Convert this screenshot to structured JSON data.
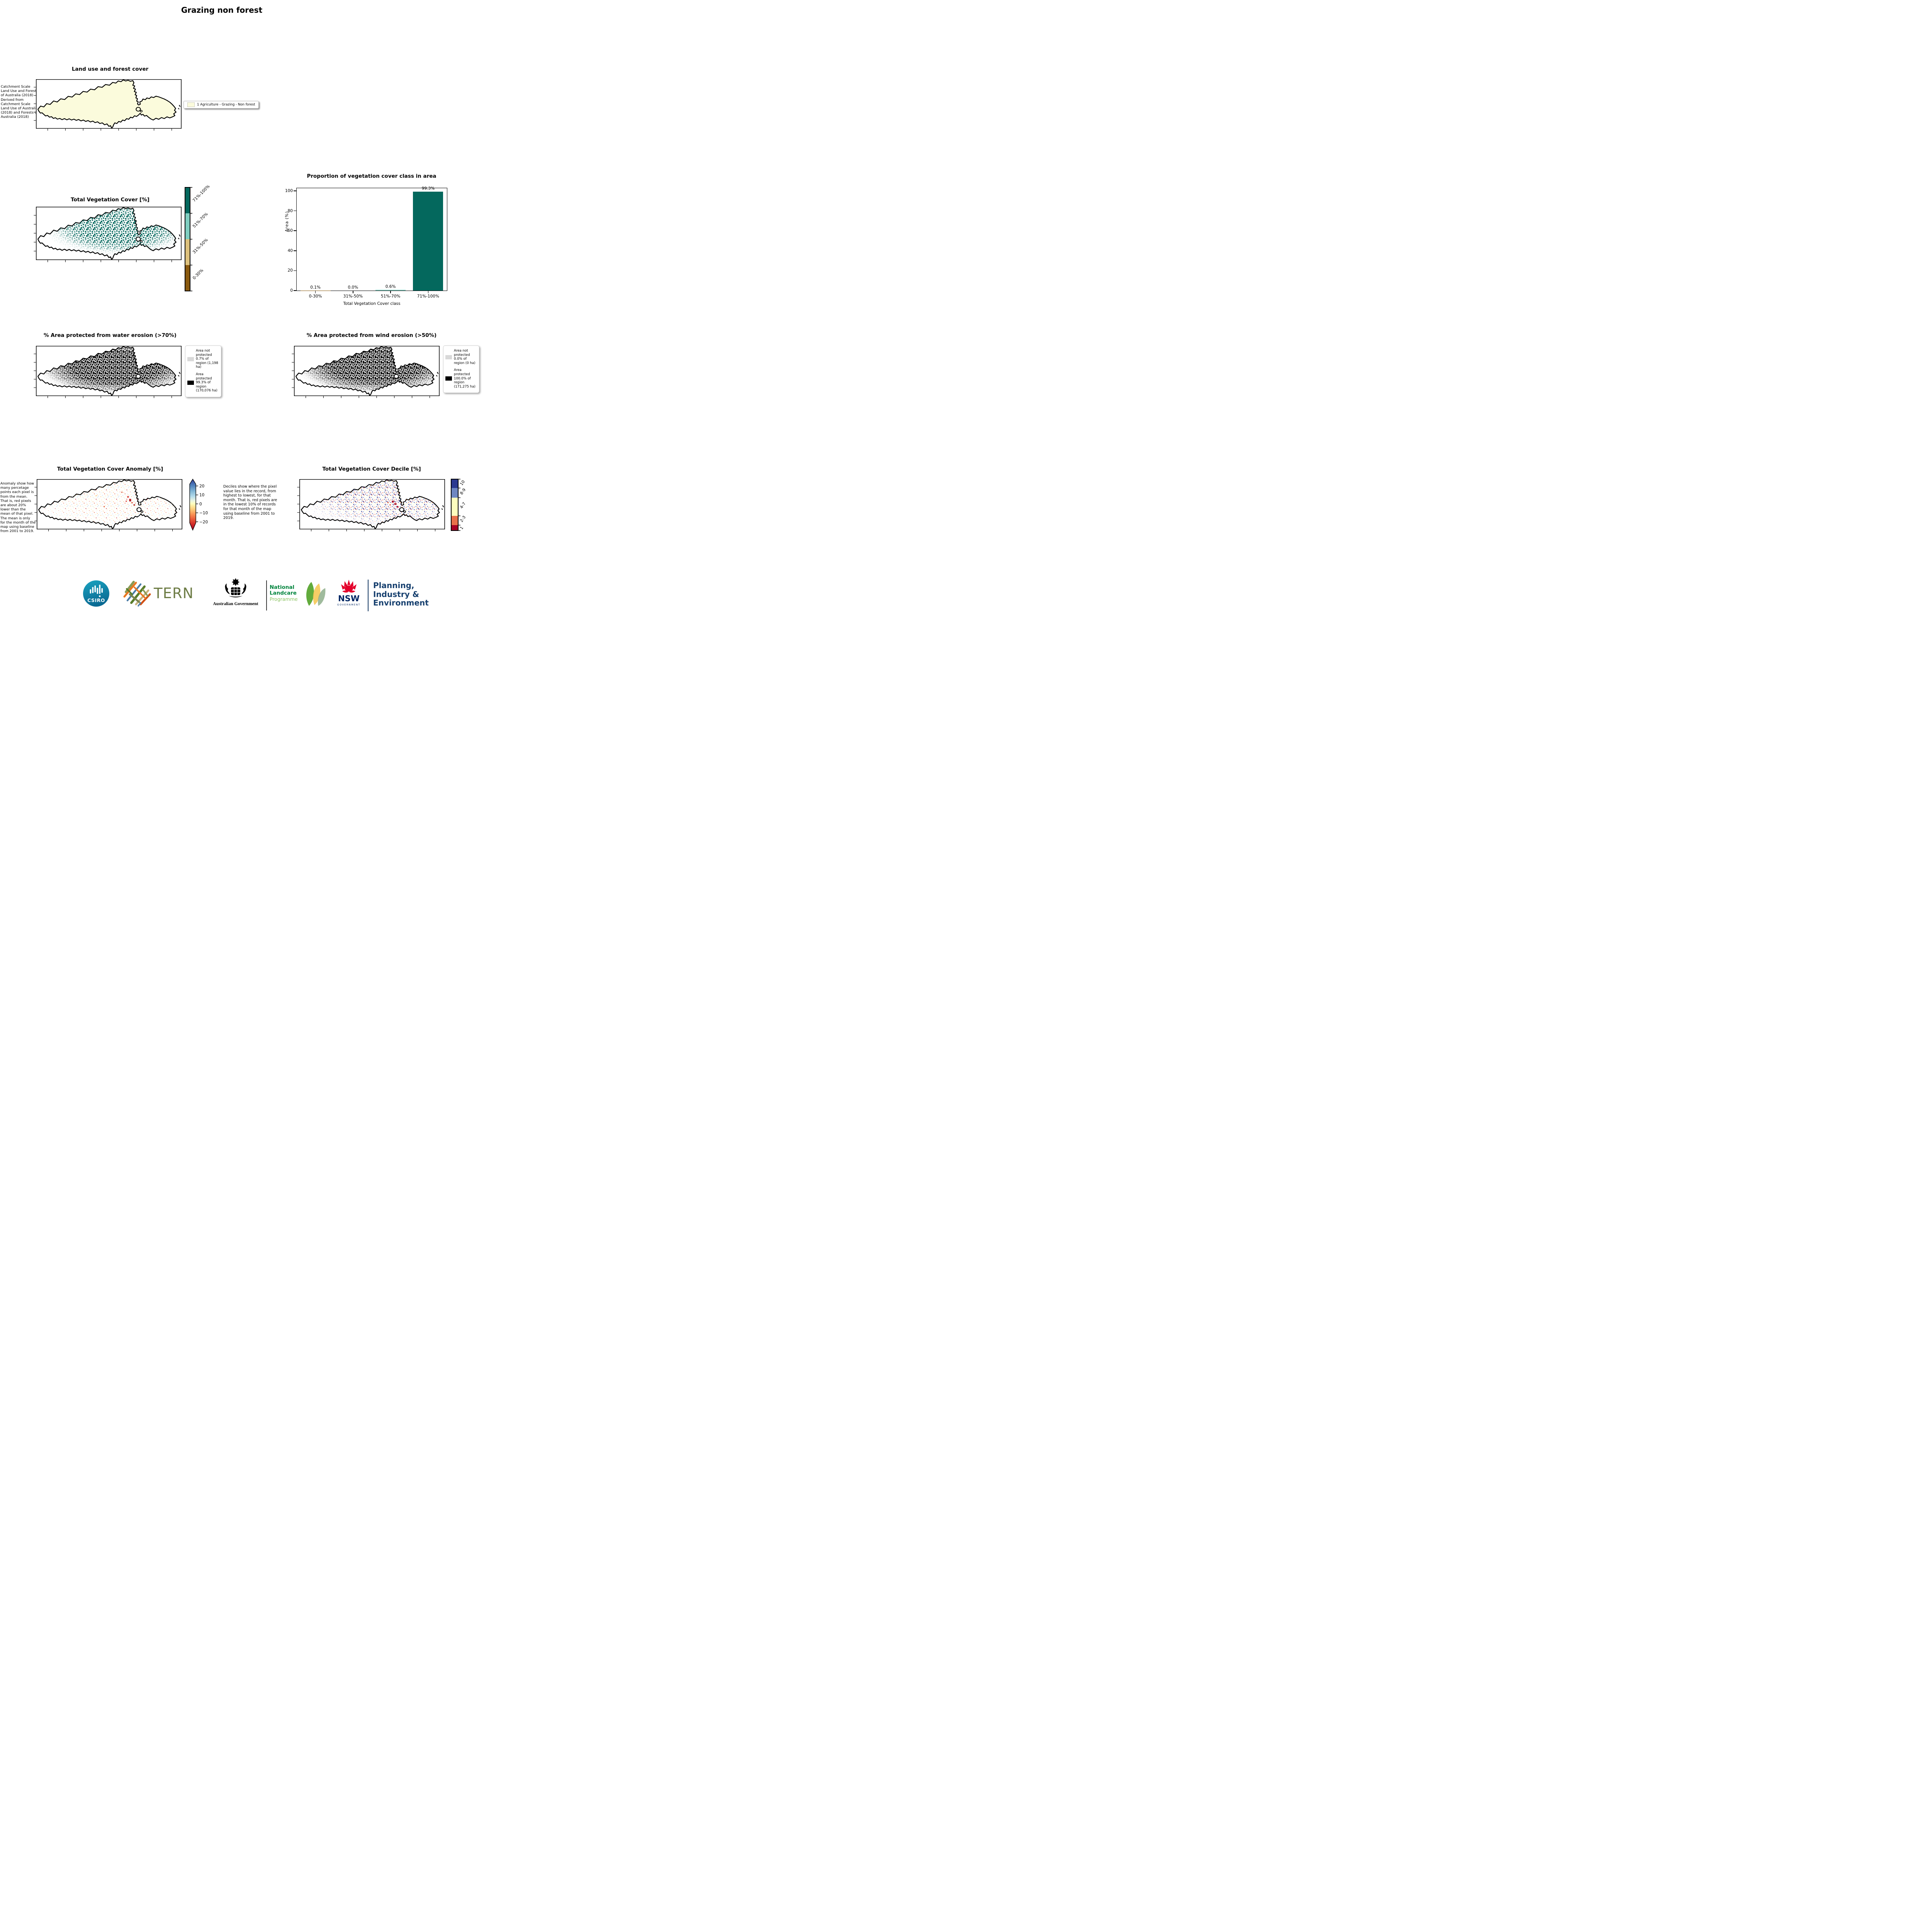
{
  "page": {
    "title": "Grazing non forest"
  },
  "land_use": {
    "title": "Land use and forest cover",
    "side_text": "Catchment Scale Land Use and Forests of Australia (2018) Derived from Catchment Scale Land Use of Australia (2018) and Forests of Australia (2018)",
    "legend_label": "1 Agriculture - Grazing - Non forest",
    "fill_color": "#fbfbdc"
  },
  "veg_cover": {
    "title": "Total Vegetation Cover [%]",
    "colorbar": {
      "labels": [
        "71%-100%",
        "51%-70%",
        "31%-50%",
        "0-30%"
      ],
      "colors": [
        "#04685d",
        "#7fcdc0",
        "#dcc07c",
        "#8a5a0f"
      ]
    }
  },
  "chart_data": {
    "type": "bar",
    "title": "Proportion of vegetation cover class in area",
    "categories": [
      "0-30%",
      "31%-50%",
      "51%-70%",
      "71%-100%"
    ],
    "values": [
      0.1,
      0.0,
      0.6,
      99.3
    ],
    "value_labels": [
      "0.1%",
      "0.0%",
      "0.6%",
      "99.3%"
    ],
    "bar_colors": [
      "#8a5a0f",
      "#dcc07c",
      "#7fcdc0",
      "#04685d"
    ],
    "xlabel": "Total Vegetation Cover class",
    "ylabel": "Area (%)",
    "ylim": [
      0,
      100
    ],
    "ytick_labels": [
      "0",
      "20",
      "40",
      "60",
      "80",
      "100"
    ],
    "grid": false,
    "legend_position": "none"
  },
  "water_erosion": {
    "title": "% Area protected from water erosion (>70%)",
    "legend": [
      {
        "label": "Area not protected 0.7% of region (1,198 ha)",
        "color": "#d9d9d9"
      },
      {
        "label": "Area protected 99.3% of region (170,076 ha)",
        "color": "#000000"
      }
    ]
  },
  "wind_erosion": {
    "title": "% Area protected from wind erosion (>50%)",
    "legend": [
      {
        "label": "Area not protected 0.0% of region (0 ha)",
        "color": "#d9d9d9"
      },
      {
        "label": "Area protected 100.0% of region (171,275 ha)",
        "color": "#000000"
      }
    ]
  },
  "anomaly": {
    "title": "Total Vegetation Cover Anomaly [%]",
    "side_text": "Anomaly show how many percetage points each pixel is from the mean. That is, red pixels are about 20% lower than the mean of that pixel. The mean is only for the month of the map using baseline from 2001 to 2019.",
    "colorbar_ticks": [
      "20",
      "10",
      "0",
      "−10",
      "−20"
    ]
  },
  "decile": {
    "title": "Total Vegetation Cover Decile [%]",
    "side_text": "Deciles show where the pixel value lies in the record, from highest to lowest, for that month. That is, red pixels are in the lowest 10% of records for that month of the map using baseline from 2001 to 2019.",
    "colorbar": {
      "labels": [
        "10",
        "8-9",
        "4-7",
        "2-3",
        "1"
      ],
      "colors": [
        "#2c3a90",
        "#6f87c1",
        "#fefebe",
        "#e8714b",
        "#a50126"
      ]
    }
  },
  "footer": {
    "csiro": "CSIRO",
    "tern": "TERN",
    "aus_gov": "Australian Government",
    "landcare_line1": "National",
    "landcare_line2": "Landcare",
    "landcare_line3": "Programme",
    "nsw": "NSW",
    "nsw_sub": "GOVERNMENT",
    "dept_line1": "Planning,",
    "dept_line2": "Industry &",
    "dept_line3": "Environment"
  }
}
